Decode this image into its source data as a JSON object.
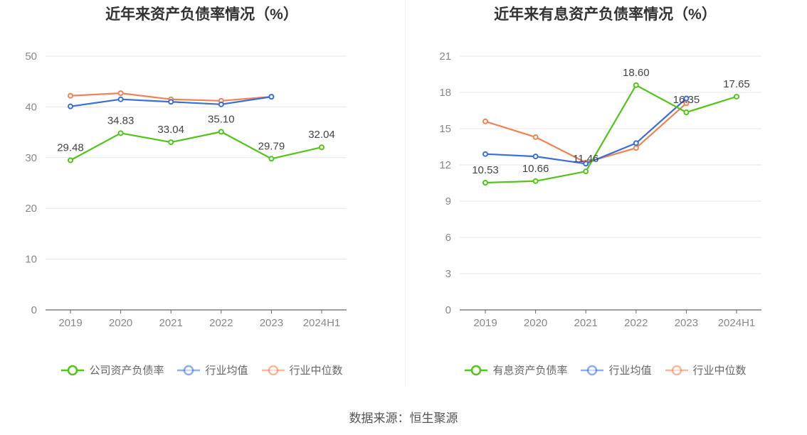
{
  "source_label": "数据来源：恒生聚源",
  "chart_data": [
    {
      "type": "line",
      "title": "近年来资产负债率情况（%）",
      "categories": [
        "2019",
        "2020",
        "2021",
        "2022",
        "2023",
        "2024H1"
      ],
      "ylim": [
        0,
        50
      ],
      "yticks": [
        0,
        10,
        20,
        30,
        40,
        50
      ],
      "grid": true,
      "legend_position": "bottom",
      "series": [
        {
          "name": "公司资产负债率",
          "color": "#52c41a",
          "values": [
            29.48,
            34.83,
            33.04,
            35.1,
            29.79,
            32.04
          ],
          "labels": [
            "29.48",
            "34.83",
            "33.04",
            "35.10",
            "29.79",
            "32.04"
          ]
        },
        {
          "name": "行业均值",
          "color": "#3a6fd8",
          "values": [
            40.1,
            41.5,
            41.0,
            40.5,
            42.0,
            null
          ]
        },
        {
          "name": "行业中位数",
          "color": "#ee8354",
          "values": [
            42.2,
            42.7,
            41.5,
            41.2,
            42.0,
            null
          ]
        }
      ]
    },
    {
      "type": "line",
      "title": "近年来有息资产负债率情况（%）",
      "categories": [
        "2019",
        "2020",
        "2021",
        "2022",
        "2023",
        "2024H1"
      ],
      "ylim": [
        0,
        21
      ],
      "yticks": [
        0,
        3,
        6,
        9,
        12,
        15,
        18,
        21
      ],
      "grid": true,
      "legend_position": "bottom",
      "series": [
        {
          "name": "有息资产负债率",
          "color": "#52c41a",
          "values": [
            10.53,
            10.66,
            11.46,
            18.6,
            16.35,
            17.65
          ],
          "labels": [
            "10.53",
            "10.66",
            "11.46",
            "18.60",
            "16.35",
            "17.65"
          ]
        },
        {
          "name": "行业均值",
          "color": "#3a6fd8",
          "values": [
            12.9,
            12.7,
            12.1,
            13.8,
            17.5,
            null
          ]
        },
        {
          "name": "行业中位数",
          "color": "#ee8354",
          "values": [
            15.6,
            14.3,
            12.2,
            13.4,
            17.1,
            null
          ]
        }
      ]
    }
  ]
}
